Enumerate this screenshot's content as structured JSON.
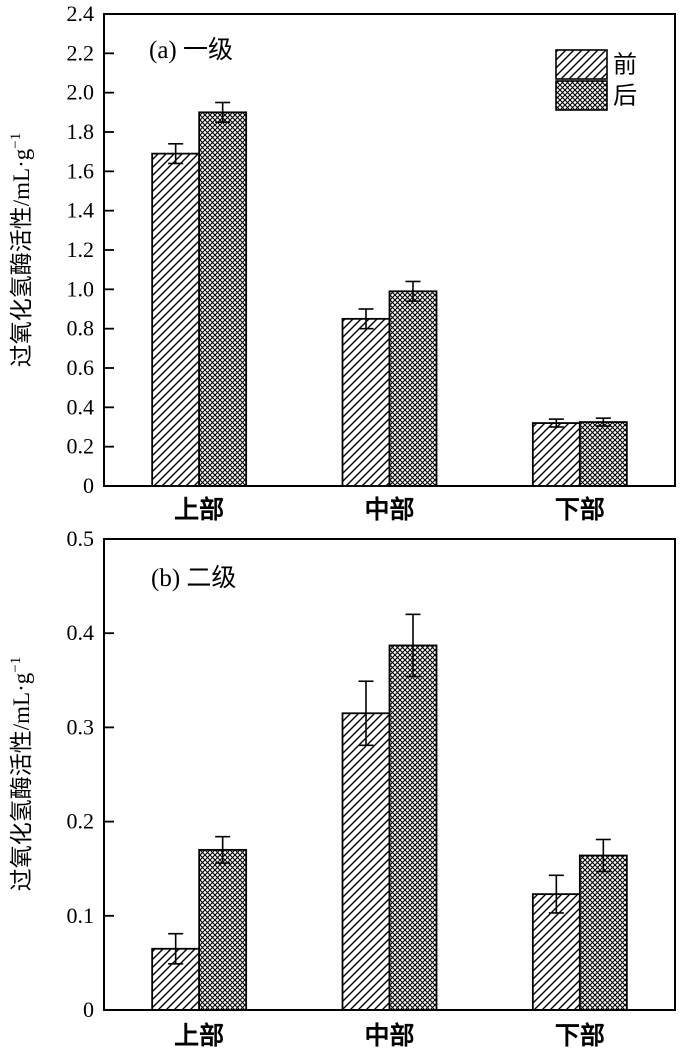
{
  "figure": {
    "background": "#ffffff",
    "ink_color": "#000000"
  },
  "chart_data": [
    {
      "id": "a",
      "type": "bar",
      "title": "(a) 一级",
      "categories": [
        "上部",
        "中部",
        "下部"
      ],
      "series": [
        {
          "name": "前",
          "hatch": "diagonal",
          "values": [
            1.69,
            0.85,
            0.32
          ],
          "errors": [
            0.05,
            0.05,
            0.02
          ]
        },
        {
          "name": "后",
          "hatch": "crosshatch",
          "values": [
            1.9,
            0.99,
            0.325
          ],
          "errors": [
            0.05,
            0.05,
            0.02
          ]
        }
      ],
      "ylabel_base": "过氧化氢酶活性/mL·g",
      "ylabel_sup": "−1",
      "ylim": [
        0,
        2.4
      ],
      "ytick_labels": [
        "0",
        "0.2",
        "0.4",
        "0.6",
        "0.8",
        "1.0",
        "1.2",
        "1.4",
        "1.6",
        "1.8",
        "2.0",
        "2.2",
        "2.4"
      ],
      "grid": false,
      "legend": {
        "position": "top-right",
        "items": [
          "前",
          "后"
        ]
      }
    },
    {
      "id": "b",
      "type": "bar",
      "title": "(b) 二级",
      "categories": [
        "上部",
        "中部",
        "下部"
      ],
      "series": [
        {
          "name": "前",
          "hatch": "diagonal",
          "values": [
            0.065,
            0.315,
            0.123
          ],
          "errors": [
            0.016,
            0.034,
            0.02
          ]
        },
        {
          "name": "后",
          "hatch": "crosshatch",
          "values": [
            0.17,
            0.387,
            0.164
          ],
          "errors": [
            0.014,
            0.033,
            0.017
          ]
        }
      ],
      "ylabel_base": "过氧化氢酶活性/mL·g",
      "ylabel_sup": "−1",
      "ylim": [
        0,
        0.5
      ],
      "ytick_labels": [
        "0",
        "0.1",
        "0.2",
        "0.3",
        "0.4",
        "0.5"
      ],
      "grid": false,
      "legend": null
    }
  ]
}
